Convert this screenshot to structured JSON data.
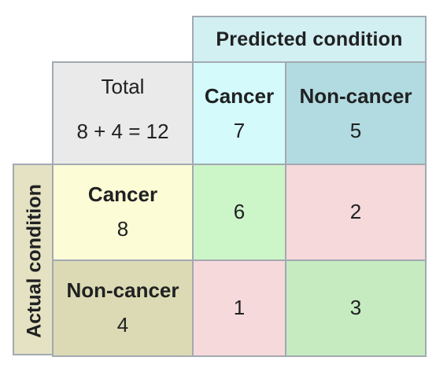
{
  "predicted_header": "Predicted condition",
  "actual_header": "Actual condition",
  "total": {
    "label": "Total",
    "formula": "8 + 4 = 12"
  },
  "predicted": {
    "cancer": {
      "label": "Cancer",
      "count": "7"
    },
    "noncancer": {
      "label": "Non-cancer",
      "count": "5"
    }
  },
  "actual": {
    "cancer": {
      "label": "Cancer",
      "count": "8"
    },
    "noncancer": {
      "label": "Non-cancer",
      "count": "4"
    }
  },
  "matrix": {
    "cancer_cancer": "6",
    "cancer_noncancer": "2",
    "noncancer_cancer": "1",
    "noncancer_noncancer": "3"
  },
  "colors": {
    "predicted_header": "#d2eff2",
    "total": "#eaeaea",
    "predicted_cancer": "#d4fafc",
    "predicted_noncancer": "#b1dbe0",
    "actual_side": "#e5e2c3",
    "actual_cancer": "#fcfcd6",
    "actual_noncancer": "#dcdab4",
    "correct": "#cdf6c8",
    "incorrect": "#f6d9db",
    "correct_dark": "#c6ebc1"
  }
}
